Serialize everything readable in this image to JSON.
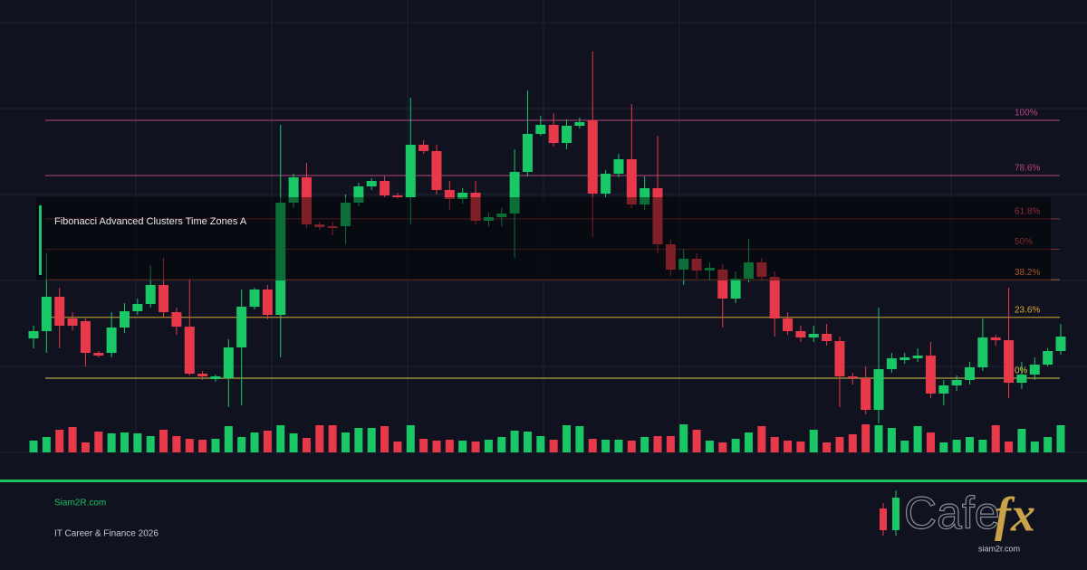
{
  "chart_data": {
    "type": "candlestick",
    "title": "Fibonacci Advanced Clusters Time Zones A",
    "ylim": [
      0,
      500
    ],
    "up_color": "#19c767",
    "down_color": "#e8394a",
    "open": [
      126,
      134,
      172,
      148,
      145,
      110,
      110,
      138,
      156,
      164,
      185,
      155,
      139,
      87,
      81,
      82,
      116,
      161,
      180,
      152,
      276,
      304,
      252,
      250,
      250,
      276,
      294,
      300,
      284,
      282,
      340,
      333,
      290,
      280,
      287,
      256,
      260,
      264,
      310,
      352,
      362,
      342,
      361,
      367,
      286,
      308,
      324,
      274,
      292,
      230,
      202,
      214,
      201,
      202,
      170,
      192,
      210,
      194,
      148,
      134,
      127,
      131,
      123,
      84,
      82,
      47,
      92,
      102,
      104,
      107,
      65,
      74,
      80,
      94,
      127,
      124,
      77,
      86,
      97,
      112
    ],
    "high": [
      140,
      220,
      182,
      155,
      148,
      112,
      155,
      165,
      170,
      207,
      215,
      160,
      192,
      90,
      86,
      125,
      180,
      182,
      185,
      362,
      308,
      320,
      255,
      255,
      285,
      298,
      303,
      305,
      287,
      392,
      345,
      340,
      300,
      292,
      300,
      265,
      270,
      335,
      400,
      372,
      375,
      368,
      370,
      443,
      312,
      330,
      385,
      305,
      350,
      235,
      225,
      220,
      210,
      208,
      200,
      236,
      215,
      200,
      155,
      140,
      140,
      142,
      128,
      88,
      95,
      160,
      110,
      110,
      115,
      122,
      80,
      85,
      100,
      148,
      130,
      182,
      100,
      105,
      115,
      142
    ],
    "low": [
      115,
      110,
      115,
      135,
      95,
      105,
      105,
      132,
      152,
      160,
      150,
      130,
      85,
      80,
      78,
      50,
      52,
      158,
      147,
      105,
      270,
      248,
      246,
      240,
      230,
      272,
      290,
      282,
      280,
      252,
      330,
      285,
      268,
      275,
      252,
      250,
      250,
      215,
      305,
      350,
      338,
      335,
      358,
      238,
      282,
      304,
      270,
      268,
      220,
      195,
      185,
      192,
      190,
      138,
      165,
      188,
      190,
      128,
      130,
      122,
      122,
      118,
      50,
      75,
      42,
      32,
      88,
      98,
      100,
      60,
      52,
      68,
      75,
      90,
      118,
      60,
      70,
      80,
      95,
      108
    ],
    "close": [
      134,
      172,
      140,
      140,
      110,
      107,
      138,
      156,
      164,
      185,
      155,
      139,
      87,
      84,
      84,
      116,
      161,
      180,
      152,
      276,
      304,
      252,
      249,
      248,
      276,
      294,
      300,
      284,
      282,
      340,
      333,
      290,
      280,
      287,
      256,
      260,
      264,
      310,
      352,
      362,
      342,
      361,
      365,
      286,
      308,
      324,
      274,
      292,
      230,
      202,
      214,
      201,
      204,
      170,
      192,
      210,
      194,
      148,
      134,
      127,
      131,
      123,
      84,
      82,
      47,
      92,
      104,
      105,
      107,
      65,
      74,
      80,
      94,
      127,
      124,
      77,
      86,
      97,
      112,
      128
    ],
    "volume": [
      13,
      17,
      25,
      28,
      11,
      23,
      21,
      22,
      21,
      18,
      25,
      18,
      15,
      14,
      15,
      29,
      17,
      22,
      24,
      30,
      21,
      16,
      30,
      30,
      22,
      27,
      27,
      29,
      12,
      30,
      15,
      13,
      14,
      13,
      12,
      14,
      17,
      24,
      23,
      18,
      14,
      30,
      29,
      15,
      14,
      14,
      13,
      17,
      18,
      18,
      31,
      25,
      13,
      11,
      15,
      22,
      29,
      17,
      13,
      12,
      25,
      11,
      17,
      20,
      31,
      30,
      27,
      13,
      29,
      22,
      11,
      14,
      17,
      14,
      30,
      12,
      26,
      12,
      17,
      30
    ],
    "volume_lim": [
      0,
      40
    ],
    "fib": {
      "low": 82,
      "high": 367,
      "levels": [
        {
          "value": 100,
          "label": "100%",
          "color": "#b5457f"
        },
        {
          "value": 78.6,
          "label": "78.6%",
          "color": "#b5457f"
        },
        {
          "value": 61.8,
          "label": "61.8%",
          "color": "#8e2c3c"
        },
        {
          "value": 50,
          "label": "50%",
          "color": "#7c2b30"
        },
        {
          "value": 38.2,
          "label": "38.2%",
          "color": "#a8552c"
        },
        {
          "value": 23.6,
          "label": "23.6%",
          "color": "#d9a736"
        },
        {
          "value": 0,
          "label": "0%",
          "color": "#dcc84a"
        }
      ]
    }
  },
  "footer": {
    "site": "Siam2R.com",
    "tagline": "IT Career & Finance 2026"
  },
  "logo": {
    "brand": "Cafe",
    "accent": "fx",
    "url": "siam2r.com"
  }
}
